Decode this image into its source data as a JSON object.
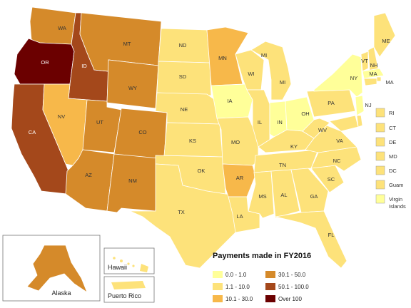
{
  "legend": {
    "title": "Payments made in FY2016",
    "items": [
      {
        "range": "0.0 - 1.0",
        "color": "#ffff99"
      },
      {
        "range": "1.1 - 10.0",
        "color": "#fde27a"
      },
      {
        "range": "10.1 - 30.0",
        "color": "#f7b84a"
      },
      {
        "range": "30.1 - 50.0",
        "color": "#d58a2a"
      },
      {
        "range": "50.1 - 100.0",
        "color": "#a4481b"
      },
      {
        "range": "Over 100",
        "color": "#6b0000"
      }
    ]
  },
  "states": [
    {
      "abbr": "WA",
      "color": "#d58a2a"
    },
    {
      "abbr": "OR",
      "color": "#6b0000"
    },
    {
      "abbr": "CA",
      "color": "#a4481b"
    },
    {
      "abbr": "ID",
      "color": "#a4481b"
    },
    {
      "abbr": "NV",
      "color": "#f7b84a"
    },
    {
      "abbr": "MT",
      "color": "#d58a2a"
    },
    {
      "abbr": "WY",
      "color": "#d58a2a"
    },
    {
      "abbr": "UT",
      "color": "#d58a2a"
    },
    {
      "abbr": "CO",
      "color": "#d58a2a"
    },
    {
      "abbr": "AZ",
      "color": "#d58a2a"
    },
    {
      "abbr": "NM",
      "color": "#d58a2a"
    },
    {
      "abbr": "ND",
      "color": "#fde27a"
    },
    {
      "abbr": "SD",
      "color": "#fde27a"
    },
    {
      "abbr": "NE",
      "color": "#fde27a"
    },
    {
      "abbr": "KS",
      "color": "#fde27a"
    },
    {
      "abbr": "OK",
      "color": "#fde27a"
    },
    {
      "abbr": "TX",
      "color": "#fde27a"
    },
    {
      "abbr": "MN",
      "color": "#f7b84a"
    },
    {
      "abbr": "IA",
      "color": "#ffff99"
    },
    {
      "abbr": "MO",
      "color": "#fde27a"
    },
    {
      "abbr": "AR",
      "color": "#f7b84a"
    },
    {
      "abbr": "LA",
      "color": "#fde27a"
    },
    {
      "abbr": "WI",
      "color": "#fde27a"
    },
    {
      "abbr": "IL",
      "color": "#fde27a"
    },
    {
      "abbr": "MI",
      "color": "#fde27a"
    },
    {
      "abbr": "IN",
      "color": "#ffff99"
    },
    {
      "abbr": "OH",
      "color": "#ffff99"
    },
    {
      "abbr": "KY",
      "color": "#fde27a"
    },
    {
      "abbr": "TN",
      "color": "#fde27a"
    },
    {
      "abbr": "MS",
      "color": "#fde27a"
    },
    {
      "abbr": "AL",
      "color": "#fde27a"
    },
    {
      "abbr": "GA",
      "color": "#fde27a"
    },
    {
      "abbr": "FL",
      "color": "#fde27a"
    },
    {
      "abbr": "SC",
      "color": "#fde27a"
    },
    {
      "abbr": "NC",
      "color": "#fde27a"
    },
    {
      "abbr": "VA",
      "color": "#fde27a"
    },
    {
      "abbr": "WV",
      "color": "#fde27a"
    },
    {
      "abbr": "PA",
      "color": "#fde27a"
    },
    {
      "abbr": "NY",
      "color": "#ffff99"
    },
    {
      "abbr": "NJ",
      "color": "#ffff99"
    },
    {
      "abbr": "VT",
      "color": "#fde27a"
    },
    {
      "abbr": "NH",
      "color": "#fde27a"
    },
    {
      "abbr": "ME",
      "color": "#fde27a"
    },
    {
      "abbr": "MA",
      "color": "#ffff99"
    }
  ],
  "small_states": [
    {
      "abbr": "MA",
      "color": "#ffff99"
    },
    {
      "abbr": "RI",
      "color": "#fde27a"
    },
    {
      "abbr": "CT",
      "color": "#fde27a"
    },
    {
      "abbr": "DE",
      "color": "#fde27a"
    },
    {
      "abbr": "MD",
      "color": "#fde27a"
    },
    {
      "abbr": "DC",
      "color": "#fde27a"
    },
    {
      "abbr": "Guam",
      "color": "#fde27a"
    },
    {
      "abbr": "Virgin Islands",
      "color": "#ffff99"
    }
  ],
  "insets": {
    "alaska": {
      "label": "Alaska",
      "color": "#d58a2a"
    },
    "hawaii": {
      "label": "Hawaii",
      "color": "#fde27a"
    },
    "puerto_rico": {
      "label": "Puerto Rico",
      "color": "#fde27a"
    }
  }
}
